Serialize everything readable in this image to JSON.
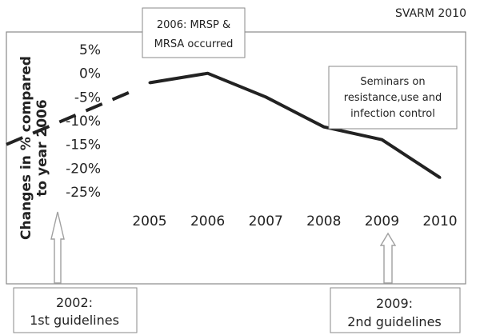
{
  "chart_data": {
    "type": "line",
    "source_label": "SVARM 2010",
    "ylabel_line1": "Changes in % compared",
    "ylabel_line2": "to year 2006",
    "categories": [
      "2005",
      "2006",
      "2007",
      "2008",
      "2009",
      "2010"
    ],
    "y_ticks": [
      "5%",
      "0%",
      "-5%",
      "-10%",
      "-15%",
      "-20%",
      "-25%"
    ],
    "ylim": [
      -25,
      5
    ],
    "grid": false,
    "series": [
      {
        "values": [
          -2,
          0,
          -5,
          -11.3,
          -14,
          -22
        ]
      }
    ],
    "dashed_extension_values": [
      -15,
      -4
    ],
    "annotations": {
      "event_2006_line1": "2006: MRSP &",
      "event_2006_line2": "MRSA occurred",
      "seminars_line1": "Seminars on",
      "seminars_line2": "resistance,use and",
      "seminars_line3": "infection control",
      "guideline_2002_line1": "2002:",
      "guideline_2002_line2": "1st guidelines",
      "guideline_2009_line1": "2009:",
      "guideline_2009_line2": "2nd guidelines"
    },
    "colors": {
      "line": "#222222",
      "frame": "#8a8a8a",
      "arrow": "#a0a0a0"
    }
  }
}
